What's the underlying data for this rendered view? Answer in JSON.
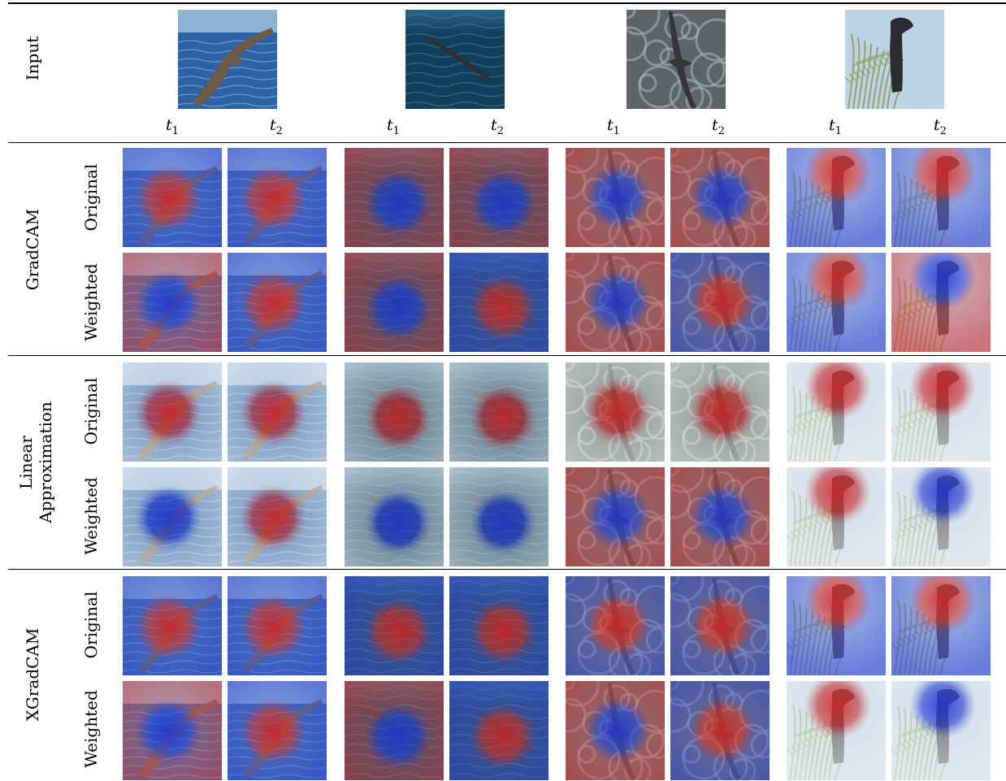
{
  "header": {
    "input_label": "Input"
  },
  "subscript_labels": [
    {
      "base": "t",
      "sub": "1"
    },
    {
      "base": "t",
      "sub": "2"
    },
    {
      "base": "t",
      "sub": "1"
    },
    {
      "base": "t",
      "sub": "2"
    },
    {
      "base": "t",
      "sub": "1"
    },
    {
      "base": "t",
      "sub": "2"
    },
    {
      "base": "t",
      "sub": "1"
    },
    {
      "base": "t",
      "sub": "2"
    }
  ],
  "methods": [
    {
      "label": "GradCAM",
      "rows": [
        "Original",
        "Weighted"
      ]
    },
    {
      "label": "Linear\nApproximation",
      "rows": [
        "Original",
        "Weighted"
      ]
    },
    {
      "label": "XGradCAM",
      "rows": [
        "Original",
        "Weighted"
      ]
    }
  ],
  "samples": [
    {
      "scene": "albatross-sea",
      "bg": "#2b63a6",
      "bg2": "#8cb3d6",
      "bird": "#6e5a48"
    },
    {
      "scene": "gull-dark-sea",
      "bg": "#123f5c",
      "bg2": "#2a6584",
      "bird": "#2f2f2f"
    },
    {
      "scene": "bird-rough-water",
      "bg": "#5b6466",
      "bg2": "#a9b3b4",
      "bird": "#353535"
    },
    {
      "scene": "bird-on-branch",
      "bg": "#bcd2e6",
      "bg2": "#8fa867",
      "bird": "#2c2c30"
    }
  ],
  "colors": {
    "pos": "#d12020",
    "neg": "#1c2fd0",
    "neutral": "#f4f4f4"
  },
  "heatmaps": [
    [
      {
        "a": "pos",
        "b": "neg"
      },
      {
        "a": "pos",
        "b": "neg"
      },
      {
        "a": "neg",
        "b": "pos"
      },
      {
        "a": "neg",
        "b": "pos"
      },
      {
        "a": "neg",
        "b": "pos"
      },
      {
        "a": "neg",
        "b": "pos"
      },
      {
        "a": "pos",
        "b": "neg"
      },
      {
        "a": "pos",
        "b": "neg"
      }
    ],
    [
      {
        "a": "neg",
        "b": "pos"
      },
      {
        "a": "pos",
        "b": "neg"
      },
      {
        "a": "neg",
        "b": "pos"
      },
      {
        "a": "pos",
        "b": "neg"
      },
      {
        "a": "neg",
        "b": "pos"
      },
      {
        "a": "pos",
        "b": "neg"
      },
      {
        "a": "pos",
        "b": "neg"
      },
      {
        "a": "neg",
        "b": "pos"
      }
    ],
    [
      {
        "a": "pos",
        "b": "neutral"
      },
      {
        "a": "pos",
        "b": "neutral"
      },
      {
        "a": "pos",
        "b": "neutral"
      },
      {
        "a": "pos",
        "b": "neutral"
      },
      {
        "a": "pos",
        "b": "neutral"
      },
      {
        "a": "pos",
        "b": "neutral"
      },
      {
        "a": "pos",
        "b": "neutral"
      },
      {
        "a": "pos",
        "b": "neutral"
      }
    ],
    [
      {
        "a": "neg",
        "b": "neutral"
      },
      {
        "a": "pos",
        "b": "neutral"
      },
      {
        "a": "neg",
        "b": "neutral"
      },
      {
        "a": "neg",
        "b": "neutral"
      },
      {
        "a": "neg",
        "b": "pos"
      },
      {
        "a": "neg",
        "b": "pos"
      },
      {
        "a": "pos",
        "b": "neutral"
      },
      {
        "a": "neg",
        "b": "neutral"
      }
    ],
    [
      {
        "a": "pos",
        "b": "neg"
      },
      {
        "a": "pos",
        "b": "neg"
      },
      {
        "a": "pos",
        "b": "neg"
      },
      {
        "a": "pos",
        "b": "neg"
      },
      {
        "a": "pos",
        "b": "neg"
      },
      {
        "a": "pos",
        "b": "neg"
      },
      {
        "a": "pos",
        "b": "neg"
      },
      {
        "a": "pos",
        "b": "neg"
      }
    ],
    [
      {
        "a": "neg",
        "b": "pos"
      },
      {
        "a": "pos",
        "b": "neg"
      },
      {
        "a": "neg",
        "b": "pos"
      },
      {
        "a": "pos",
        "b": "neg"
      },
      {
        "a": "neg",
        "b": "pos"
      },
      {
        "a": "pos",
        "b": "neg"
      },
      {
        "a": "pos",
        "b": "neutral"
      },
      {
        "a": "neg",
        "b": "neutral"
      }
    ]
  ]
}
